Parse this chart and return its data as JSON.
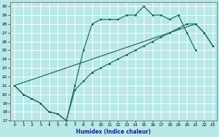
{
  "xlabel": "Humidex (Indice chaleur)",
  "xlim": [
    -0.5,
    23.5
  ],
  "ylim": [
    17,
    30.5
  ],
  "yticks": [
    17,
    18,
    19,
    20,
    21,
    22,
    23,
    24,
    25,
    26,
    27,
    28,
    29,
    30
  ],
  "xticks": [
    0,
    1,
    2,
    3,
    4,
    5,
    6,
    7,
    8,
    9,
    10,
    11,
    12,
    13,
    14,
    15,
    16,
    17,
    18,
    19,
    20,
    21,
    22,
    23
  ],
  "bg_color": "#b8e8e8",
  "grid_color": "#ffffff",
  "line_color": "#1a6b5a",
  "line1_x": [
    0,
    1,
    2,
    3,
    4,
    5,
    6,
    7,
    8,
    9,
    10,
    11,
    12,
    13,
    14,
    15,
    16,
    17,
    18,
    19,
    20,
    21
  ],
  "line1_y": [
    21,
    20,
    19.5,
    19,
    18,
    17.8,
    17,
    21,
    25,
    28,
    28.5,
    28.5,
    28.5,
    29,
    29,
    30,
    29,
    29,
    28.5,
    29,
    27,
    25
  ],
  "line2_x": [
    0,
    1,
    2,
    3,
    4,
    5,
    6,
    7,
    8,
    9,
    10,
    11,
    12,
    13,
    14,
    15,
    16,
    17,
    18,
    19,
    20,
    21,
    22,
    23
  ],
  "line2_y": [
    21,
    20,
    19.5,
    19,
    18,
    17.8,
    17,
    20.5,
    21.5,
    22.5,
    23,
    23.5,
    24,
    24.5,
    25,
    25.5,
    26,
    26.5,
    27,
    27.5,
    28,
    28,
    27,
    25.5
  ],
  "line3_x": [
    0,
    21,
    22,
    23
  ],
  "line3_y": [
    21,
    28,
    27,
    25.5
  ]
}
